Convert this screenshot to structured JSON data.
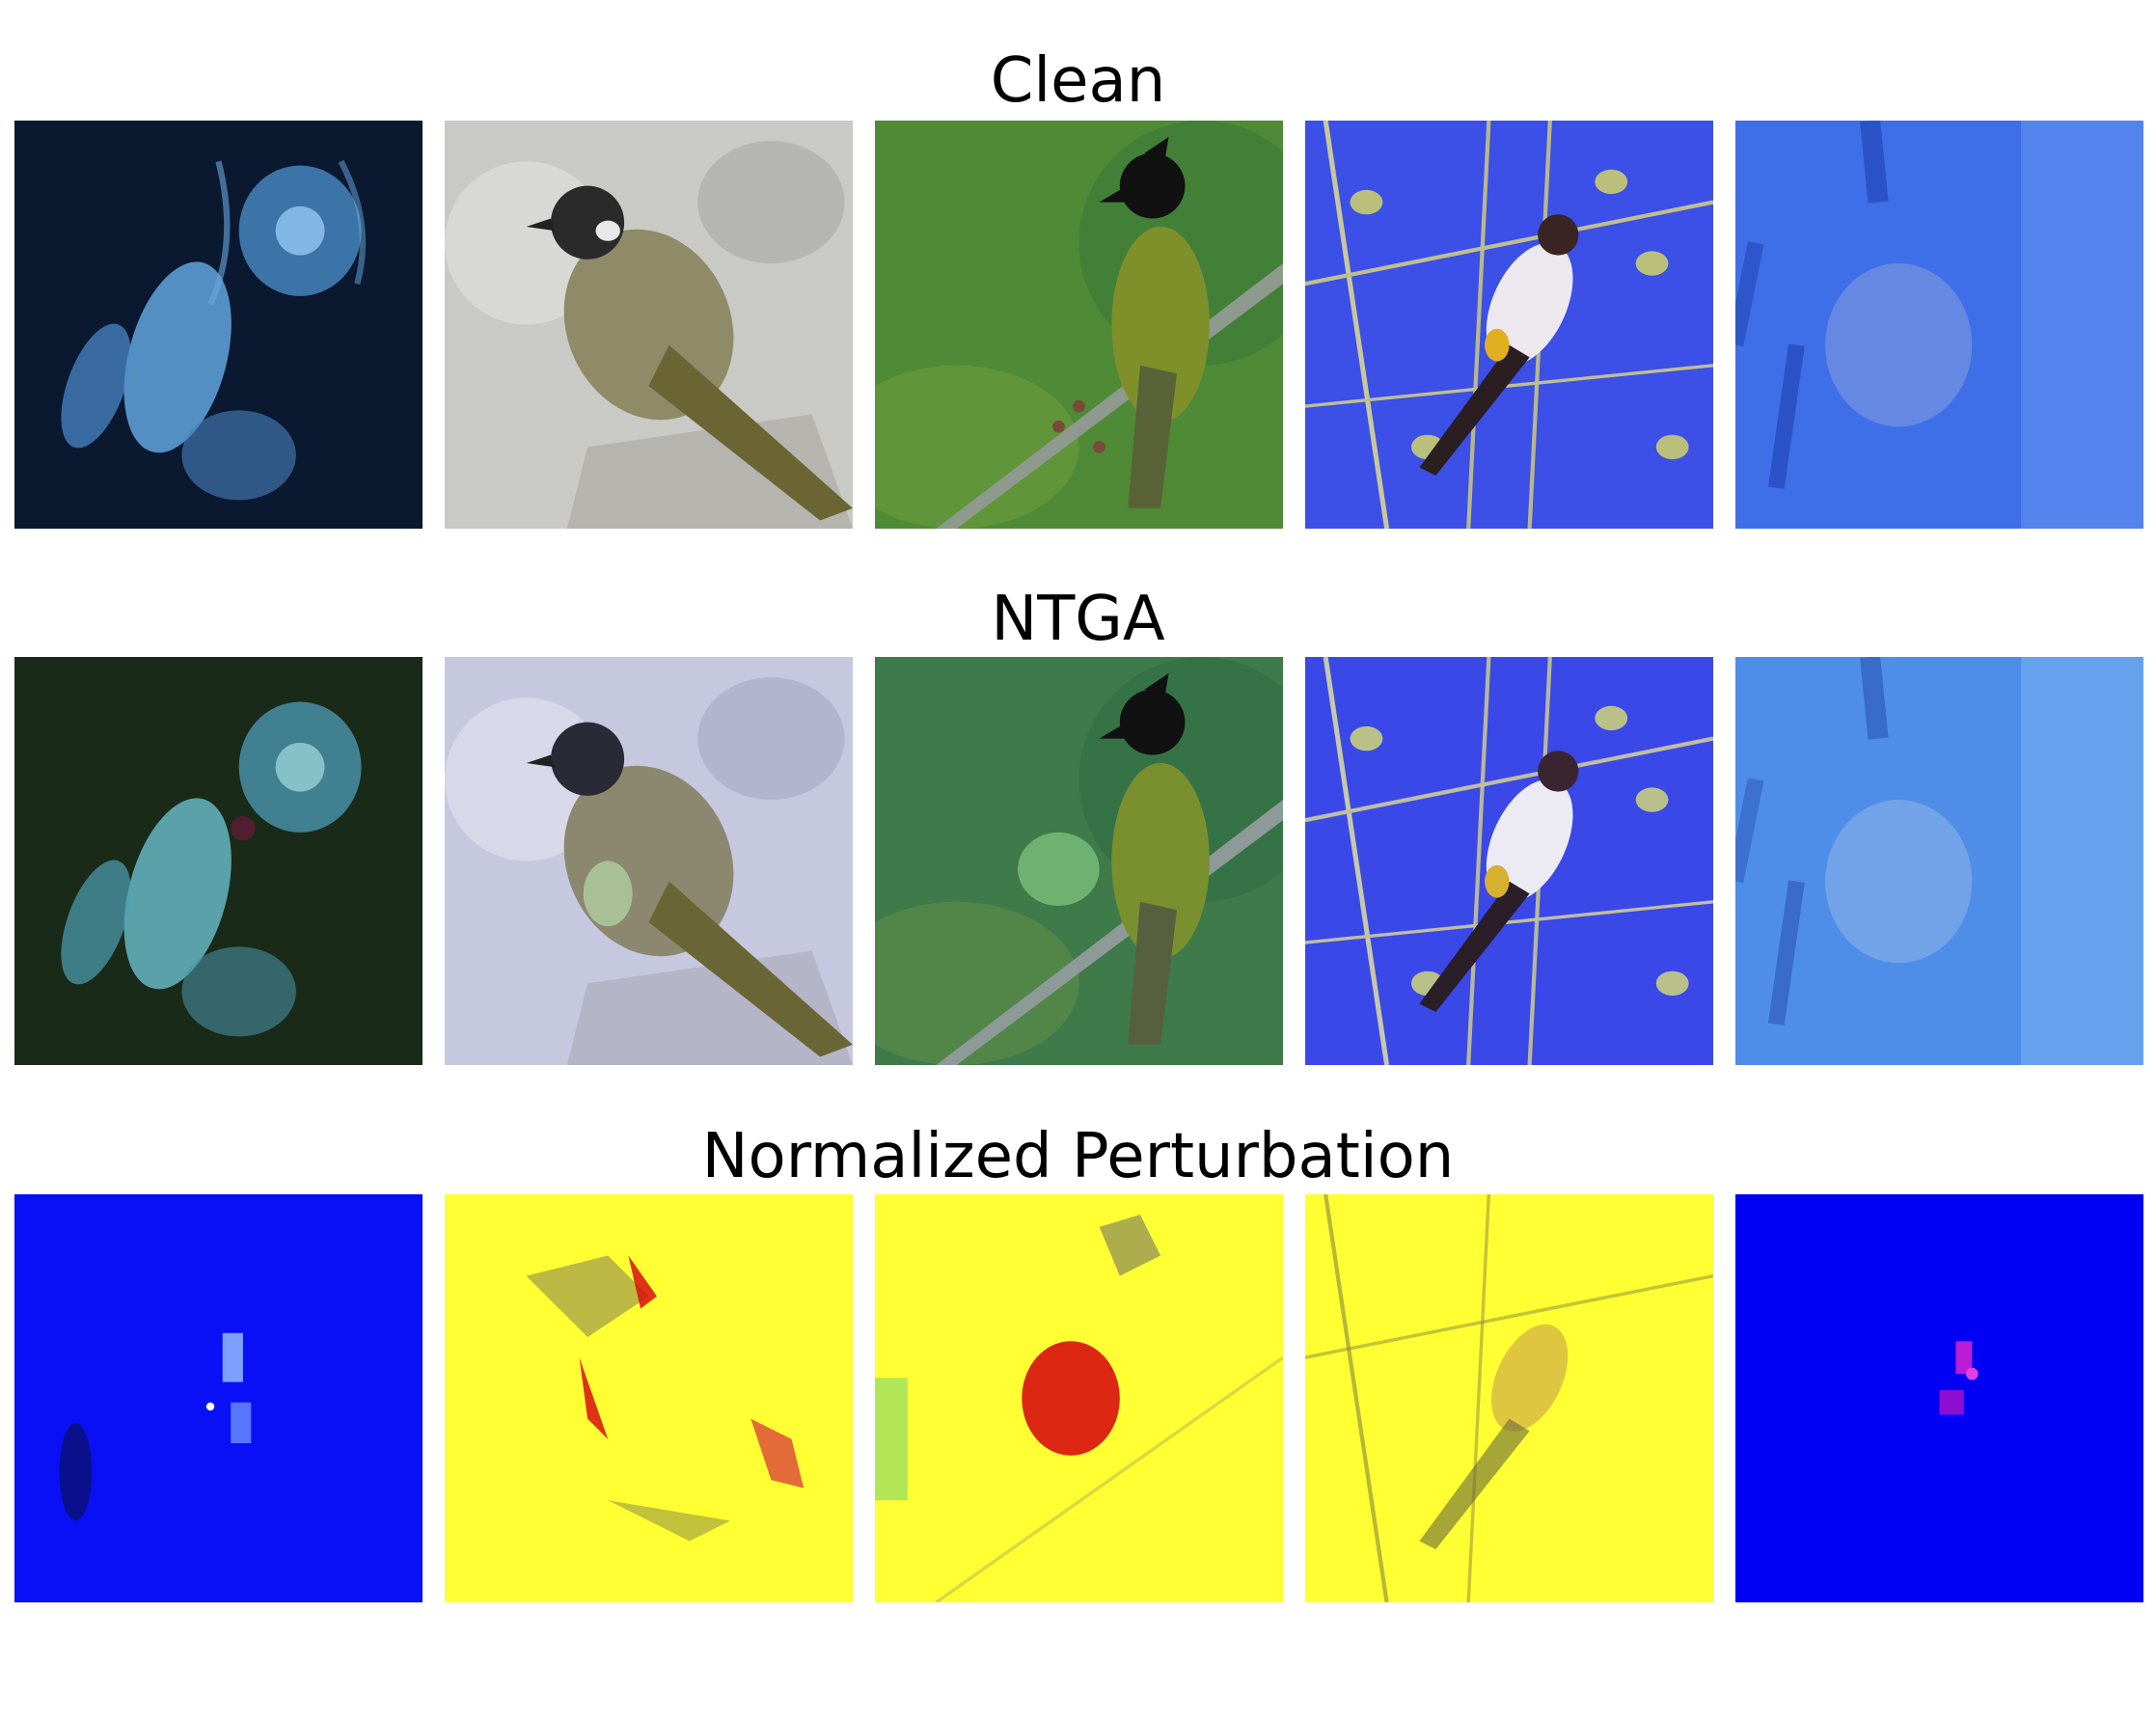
{
  "figure": {
    "rows": [
      {
        "title": "Clean",
        "panels": [
          {
            "subject": "jellyfish",
            "bg": "#0a1830"
          },
          {
            "subject": "bird-on-rock",
            "bg": "#c9c9c5"
          },
          {
            "subject": "crested-bird-on-branch",
            "bg": "#4f8a36"
          },
          {
            "subject": "bird-in-branches",
            "bg": "#3c4fe6"
          },
          {
            "subject": "blue-abstract",
            "bg": "#3f6fe8"
          }
        ]
      },
      {
        "title": "NTGA",
        "panels": [
          {
            "subject": "jellyfish",
            "bg": "#1a2a18"
          },
          {
            "subject": "bird-on-rock",
            "bg": "#c6c8e0"
          },
          {
            "subject": "crested-bird-on-branch",
            "bg": "#3f7a4a"
          },
          {
            "subject": "bird-in-branches",
            "bg": "#3a48e8"
          },
          {
            "subject": "blue-abstract",
            "bg": "#4f8ee8"
          }
        ]
      },
      {
        "title": "Normalized Perturbation",
        "panels": [
          {
            "subject": "perturbation-blue",
            "bg": "#0a10f5"
          },
          {
            "subject": "perturbation-yellow-red",
            "bg": "#ffff33"
          },
          {
            "subject": "perturbation-yellow-red-large",
            "bg": "#ffff33"
          },
          {
            "subject": "perturbation-yellow-branches",
            "bg": "#ffff33"
          },
          {
            "subject": "perturbation-blue-magenta",
            "bg": "#0000f5"
          }
        ]
      }
    ]
  }
}
